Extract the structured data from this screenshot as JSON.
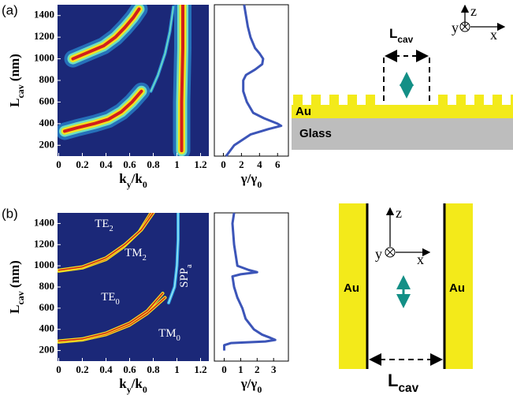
{
  "panel_labels": [
    "(a)",
    "(b)"
  ],
  "chart_data": [
    {
      "type": "heatmap",
      "background": "#1b2878",
      "xlim": [
        -0.01,
        1.27
      ],
      "ylim": [
        100,
        1500
      ],
      "xticks": [
        0,
        0.2,
        0.4,
        0.6,
        0.8,
        1,
        1.2
      ],
      "yticks": [
        200,
        400,
        600,
        800,
        1000,
        1200,
        1400
      ],
      "x_label": [
        {
          "t": "k"
        },
        {
          "t": "y",
          "sub": true
        },
        {
          "t": "/k"
        },
        {
          "t": "0",
          "sub": true
        }
      ],
      "y_label": [
        {
          "t": "L"
        },
        {
          "t": "cav",
          "sub": true
        },
        {
          "t": " (nm)"
        }
      ],
      "series": [
        {
          "colors": [
            "#2a8fd6",
            "#6fe0c0",
            "#f1e321",
            "#d21f1b"
          ],
          "x": [
            0.05,
            0.15,
            0.3,
            0.42,
            0.53,
            0.62,
            0.7
          ],
          "y": [
            330,
            360,
            400,
            440,
            510,
            600,
            700
          ]
        },
        {
          "colors": [
            "#2a8fd6",
            "#6fe0c0",
            "#f1e321",
            "#d21f1b"
          ],
          "x": [
            0.12,
            0.25,
            0.38,
            0.48,
            0.56,
            0.63,
            0.68
          ],
          "y": [
            1000,
            1060,
            1120,
            1200,
            1290,
            1380,
            1460
          ]
        },
        {
          "colors": [
            "#2a8fd6",
            "#6fe0c0"
          ],
          "x": [
            0.78,
            0.84,
            0.9,
            0.94,
            0.97
          ],
          "y": [
            700,
            850,
            1050,
            1250,
            1480
          ]
        },
        {
          "colors": [
            "#2a8fd6",
            "#6fe0c0",
            "#f1e321",
            "#d21f1b"
          ],
          "x": [
            1.04,
            1.04,
            1.05,
            1.05
          ],
          "y": [
            150,
            600,
            1100,
            1500
          ]
        }
      ]
    },
    {
      "type": "line",
      "color": "#3c55b8",
      "xlim": [
        -1,
        7.2
      ],
      "ylim": [
        100,
        1500
      ],
      "xticks": [
        0,
        2,
        4,
        6
      ],
      "x_label": [
        {
          "t": "γ/γ"
        },
        {
          "t": "0",
          "sub": true
        }
      ],
      "x": [
        0.3,
        1.2,
        3,
        5,
        6.4,
        6,
        4.5,
        3.3,
        2.6,
        2.2,
        2.2,
        2.5,
        3.5,
        4.3,
        4.4,
        4,
        3.5,
        3,
        2.7,
        2.5,
        2.3
      ],
      "y": [
        100,
        200,
        300,
        350,
        380,
        400,
        450,
        500,
        600,
        700,
        800,
        850,
        900,
        950,
        1000,
        1050,
        1100,
        1200,
        1300,
        1400,
        1500
      ]
    },
    {
      "type": "heatmap",
      "background": "#1b2878",
      "xlim": [
        -0.01,
        1.27
      ],
      "ylim": [
        100,
        1500
      ],
      "xticks": [
        0,
        0.2,
        0.4,
        0.6,
        0.8,
        1,
        1.2
      ],
      "yticks": [
        200,
        400,
        600,
        800,
        1000,
        1200,
        1400
      ],
      "x_label": [
        {
          "t": "k"
        },
        {
          "t": "y",
          "sub": true
        },
        {
          "t": "/k"
        },
        {
          "t": "0",
          "sub": true
        }
      ],
      "y_label": [
        {
          "t": "L"
        },
        {
          "t": "cav",
          "sub": true
        },
        {
          "t": " (nm)"
        }
      ],
      "annotations": [
        [
          {
            "t": "TE"
          },
          {
            "t": "2",
            "sub": true
          }
        ],
        [
          {
            "t": "TM"
          },
          {
            "t": "2",
            "sub": true
          }
        ],
        [
          {
            "t": "TE"
          },
          {
            "t": "0",
            "sub": true
          }
        ],
        [
          {
            "t": "SPP"
          },
          {
            "t": "a",
            "sub": true
          }
        ],
        [
          {
            "t": "TM"
          },
          {
            "t": "0",
            "sub": true
          }
        ]
      ],
      "series": [
        {
          "colors": [
            "#f1e321",
            "#d21f1b"
          ],
          "x": [
            0,
            0.2,
            0.4,
            0.6,
            0.75,
            0.9
          ],
          "y": [
            280,
            300,
            350,
            440,
            550,
            700
          ]
        },
        {
          "colors": [
            "#f1e321",
            "#d21f1b"
          ],
          "x": [
            0,
            0.2,
            0.4,
            0.6,
            0.75,
            0.88
          ],
          "y": [
            290,
            310,
            365,
            460,
            575,
            740
          ]
        },
        {
          "colors": [
            "#f1e321",
            "#d21f1b"
          ],
          "x": [
            0,
            0.2,
            0.4,
            0.55,
            0.68,
            0.78
          ],
          "y": [
            950,
            980,
            1060,
            1180,
            1320,
            1500
          ]
        },
        {
          "colors": [
            "#f1e321",
            "#d21f1b"
          ],
          "x": [
            0,
            0.2,
            0.4,
            0.56,
            0.7,
            0.8
          ],
          "y": [
            958,
            990,
            1075,
            1200,
            1340,
            1500
          ]
        },
        {
          "colors": [
            "#2fa3e6",
            "#9be8f0"
          ],
          "x": [
            0.93,
            0.98,
            1.0,
            1.01,
            1.01
          ],
          "y": [
            650,
            800,
            1000,
            1250,
            1500
          ]
        }
      ]
    },
    {
      "type": "line",
      "color": "#3c55b8",
      "xlim": [
        -0.6,
        3.9
      ],
      "ylim": [
        100,
        1500
      ],
      "xticks": [
        0,
        1,
        2,
        3
      ],
      "x_label": [
        {
          "t": "γ/γ"
        },
        {
          "t": "0",
          "sub": true
        }
      ],
      "x": [
        0,
        0,
        0.4,
        2.5,
        3.1,
        2.8,
        2.3,
        1.8,
        1.3,
        1.1,
        0.8,
        0.6,
        0.5,
        1.0,
        2.0,
        1.5,
        0.8,
        0.7,
        0.6,
        0.5,
        0.6
      ],
      "y": [
        200,
        250,
        270,
        285,
        300,
        320,
        350,
        400,
        500,
        600,
        700,
        800,
        900,
        920,
        940,
        960,
        1000,
        1100,
        1200,
        1400,
        1500
      ]
    }
  ],
  "diagrams": [
    {
      "cavity_label": [
        {
          "t": "L"
        },
        {
          "t": "cav",
          "sub": true
        }
      ],
      "layer": "Au",
      "substrate": "Glass",
      "axes": [
        "z",
        "y",
        "x"
      ]
    },
    {
      "left": "Au",
      "right": "Au",
      "cavity_label": [
        {
          "t": "L"
        },
        {
          "t": "cav",
          "sub": true
        }
      ],
      "axes": [
        "z",
        "y",
        "x"
      ]
    }
  ]
}
